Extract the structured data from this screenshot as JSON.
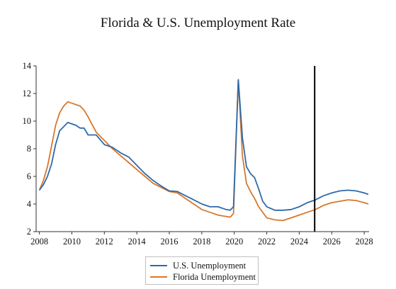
{
  "chart_data": {
    "type": "line",
    "title": "Florida & U.S. Unemployment Rate",
    "xlabel": "",
    "ylabel": "",
    "xlim": [
      2007.8,
      2028.3
    ],
    "ylim": [
      2,
      14
    ],
    "x_ticks": [
      2008,
      2010,
      2012,
      2014,
      2016,
      2018,
      2020,
      2022,
      2024,
      2026,
      2028
    ],
    "y_ticks": [
      2,
      4,
      6,
      8,
      10,
      12,
      14
    ],
    "grid": false,
    "legend_position": "bottom-center",
    "vertical_marker_x": 2024.95,
    "series": [
      {
        "name": "U.S. Unemployment",
        "color": "#2e6aa8",
        "points": [
          [
            2008.0,
            5.0
          ],
          [
            2008.25,
            5.4
          ],
          [
            2008.5,
            6.0
          ],
          [
            2008.75,
            6.9
          ],
          [
            2009.0,
            8.3
          ],
          [
            2009.25,
            9.3
          ],
          [
            2009.5,
            9.6
          ],
          [
            2009.75,
            9.9
          ],
          [
            2010.0,
            9.8
          ],
          [
            2010.25,
            9.7
          ],
          [
            2010.5,
            9.5
          ],
          [
            2010.75,
            9.5
          ],
          [
            2011.0,
            9.0
          ],
          [
            2011.5,
            9.0
          ],
          [
            2012.0,
            8.3
          ],
          [
            2012.5,
            8.1
          ],
          [
            2013.0,
            7.7
          ],
          [
            2013.5,
            7.4
          ],
          [
            2014.0,
            6.8
          ],
          [
            2014.5,
            6.2
          ],
          [
            2015.0,
            5.7
          ],
          [
            2015.5,
            5.3
          ],
          [
            2016.0,
            4.95
          ],
          [
            2016.5,
            4.9
          ],
          [
            2017.0,
            4.6
          ],
          [
            2017.5,
            4.3
          ],
          [
            2018.0,
            4.0
          ],
          [
            2018.5,
            3.8
          ],
          [
            2019.0,
            3.8
          ],
          [
            2019.5,
            3.6
          ],
          [
            2019.75,
            3.55
          ],
          [
            2019.95,
            3.8
          ],
          [
            2020.25,
            13.0
          ],
          [
            2020.5,
            8.8
          ],
          [
            2020.75,
            6.7
          ],
          [
            2021.0,
            6.2
          ],
          [
            2021.25,
            5.9
          ],
          [
            2021.5,
            5.1
          ],
          [
            2021.75,
            4.2
          ],
          [
            2022.0,
            3.8
          ],
          [
            2022.5,
            3.55
          ],
          [
            2023.0,
            3.55
          ],
          [
            2023.5,
            3.6
          ],
          [
            2024.0,
            3.8
          ],
          [
            2024.5,
            4.1
          ],
          [
            2025.0,
            4.3
          ],
          [
            2025.5,
            4.6
          ],
          [
            2026.0,
            4.8
          ],
          [
            2026.5,
            4.95
          ],
          [
            2027.0,
            5.0
          ],
          [
            2027.5,
            4.95
          ],
          [
            2028.0,
            4.8
          ],
          [
            2028.25,
            4.7
          ]
        ]
      },
      {
        "name": "Florida Unemployment",
        "color": "#d9772b",
        "points": [
          [
            2008.0,
            5.0
          ],
          [
            2008.25,
            5.7
          ],
          [
            2008.5,
            6.7
          ],
          [
            2008.75,
            8.2
          ],
          [
            2009.0,
            9.7
          ],
          [
            2009.25,
            10.6
          ],
          [
            2009.5,
            11.1
          ],
          [
            2009.75,
            11.4
          ],
          [
            2010.0,
            11.3
          ],
          [
            2010.5,
            11.1
          ],
          [
            2010.75,
            10.8
          ],
          [
            2011.0,
            10.3
          ],
          [
            2011.5,
            9.2
          ],
          [
            2012.0,
            8.6
          ],
          [
            2012.5,
            8.0
          ],
          [
            2013.0,
            7.5
          ],
          [
            2013.5,
            7.0
          ],
          [
            2014.0,
            6.5
          ],
          [
            2014.5,
            6.0
          ],
          [
            2015.0,
            5.5
          ],
          [
            2015.5,
            5.2
          ],
          [
            2016.0,
            4.9
          ],
          [
            2016.5,
            4.8
          ],
          [
            2017.0,
            4.4
          ],
          [
            2017.5,
            4.0
          ],
          [
            2018.0,
            3.6
          ],
          [
            2018.5,
            3.4
          ],
          [
            2019.0,
            3.2
          ],
          [
            2019.5,
            3.1
          ],
          [
            2019.75,
            3.05
          ],
          [
            2019.95,
            3.3
          ],
          [
            2020.25,
            13.0
          ],
          [
            2020.5,
            7.5
          ],
          [
            2020.75,
            5.5
          ],
          [
            2021.0,
            4.9
          ],
          [
            2021.25,
            4.4
          ],
          [
            2021.5,
            3.8
          ],
          [
            2022.0,
            3.0
          ],
          [
            2022.5,
            2.85
          ],
          [
            2023.0,
            2.8
          ],
          [
            2023.5,
            3.0
          ],
          [
            2024.0,
            3.2
          ],
          [
            2024.5,
            3.4
          ],
          [
            2025.0,
            3.6
          ],
          [
            2025.5,
            3.9
          ],
          [
            2026.0,
            4.1
          ],
          [
            2026.5,
            4.2
          ],
          [
            2027.0,
            4.3
          ],
          [
            2027.5,
            4.25
          ],
          [
            2028.0,
            4.1
          ],
          [
            2028.25,
            4.0
          ]
        ]
      }
    ]
  }
}
